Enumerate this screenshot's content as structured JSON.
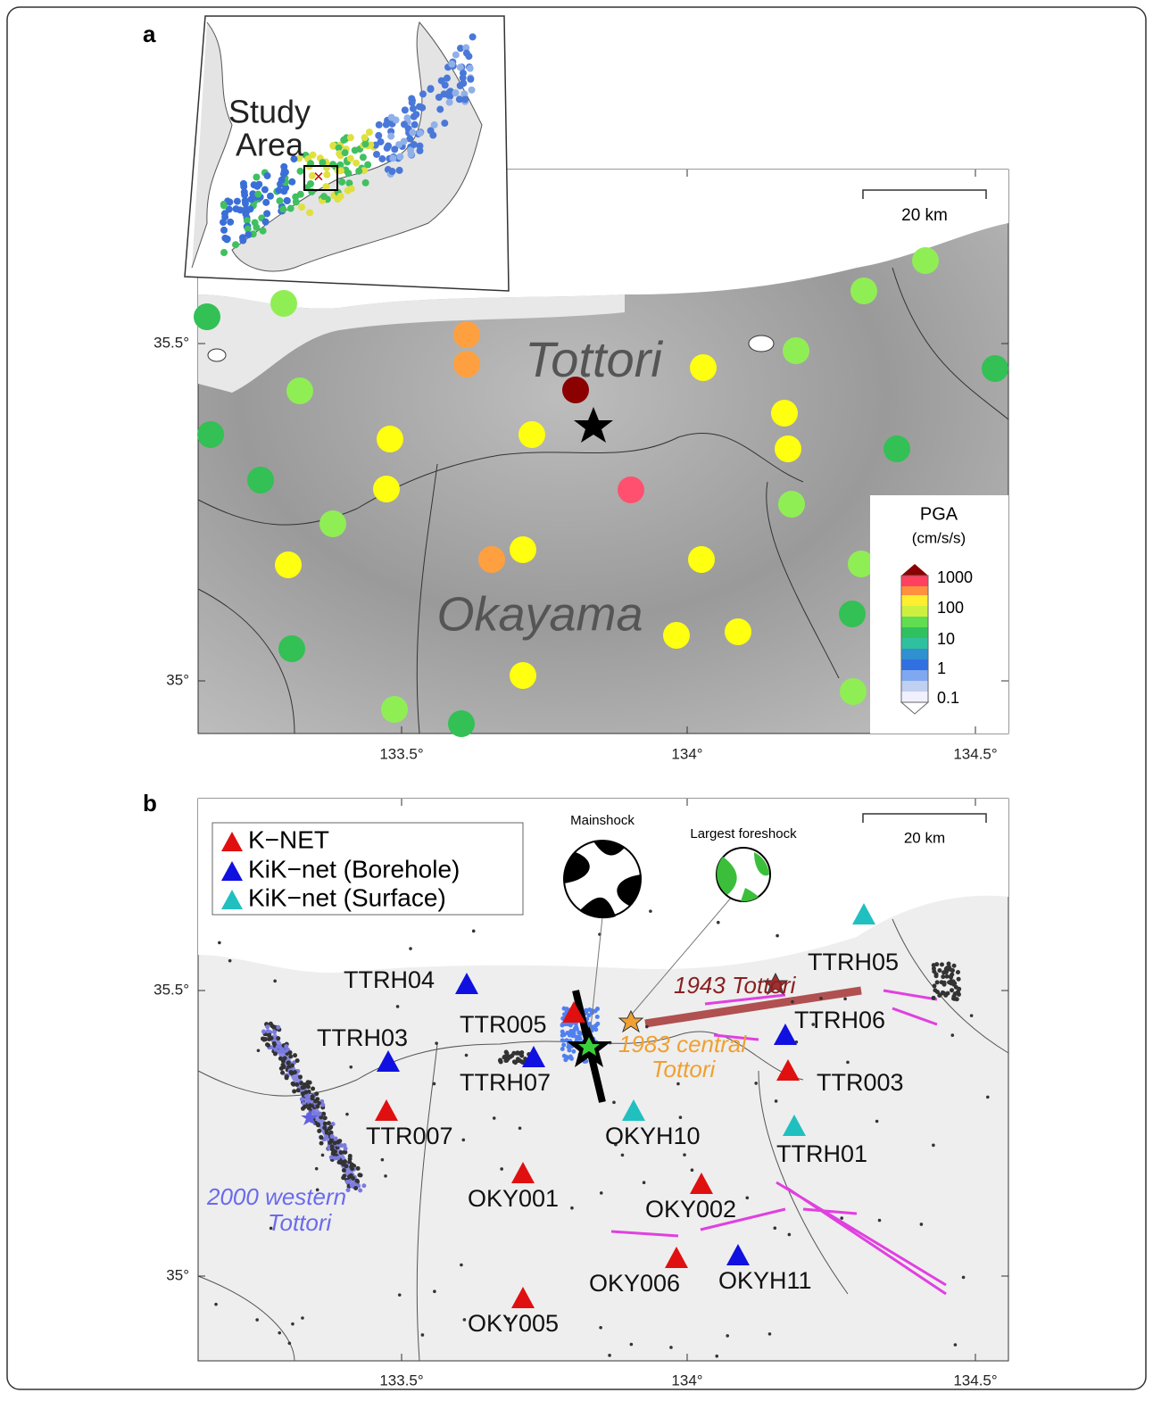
{
  "panel_a": {
    "label": "a",
    "inset_label": [
      "Study",
      "Area"
    ],
    "scale_bar": "20 km",
    "regions": [
      "Tottori",
      "Okayama"
    ],
    "colorbar": {
      "title": "PGA",
      "unit": "(cm/s/s)",
      "labels": [
        "1000",
        "100",
        "10",
        "1",
        "0.1"
      ]
    },
    "lat_labels": [
      "35.5°",
      "35°"
    ],
    "lon_labels": [
      "133.5°",
      "134°",
      "134.5°"
    ]
  },
  "panel_b": {
    "label": "b",
    "legend": [
      "K−NET",
      "KiK−net (Borehole)",
      "KiK−net (Surface)"
    ],
    "focal_mechanisms": [
      "Mainshock",
      "Largest foreshock"
    ],
    "scale_bar": "20 km",
    "stations": [
      "TTRH05",
      "TTRH04",
      "TTR005",
      "TTRH03",
      "TTRH07",
      "TTRH06",
      "TTR003",
      "TTR007",
      "OKYH10",
      "TTRH01",
      "OKY001",
      "OKY002",
      "OKY006",
      "OKYH11",
      "OKY005"
    ],
    "events": [
      [
        "1943 Tottori"
      ],
      [
        "1983 central",
        "Tottori"
      ],
      [
        "2000 western",
        "Tottori"
      ]
    ],
    "lat_labels": [
      "35.5°",
      "35°"
    ],
    "lon_labels": [
      "133.5°",
      "134°",
      "134.5°"
    ]
  }
}
